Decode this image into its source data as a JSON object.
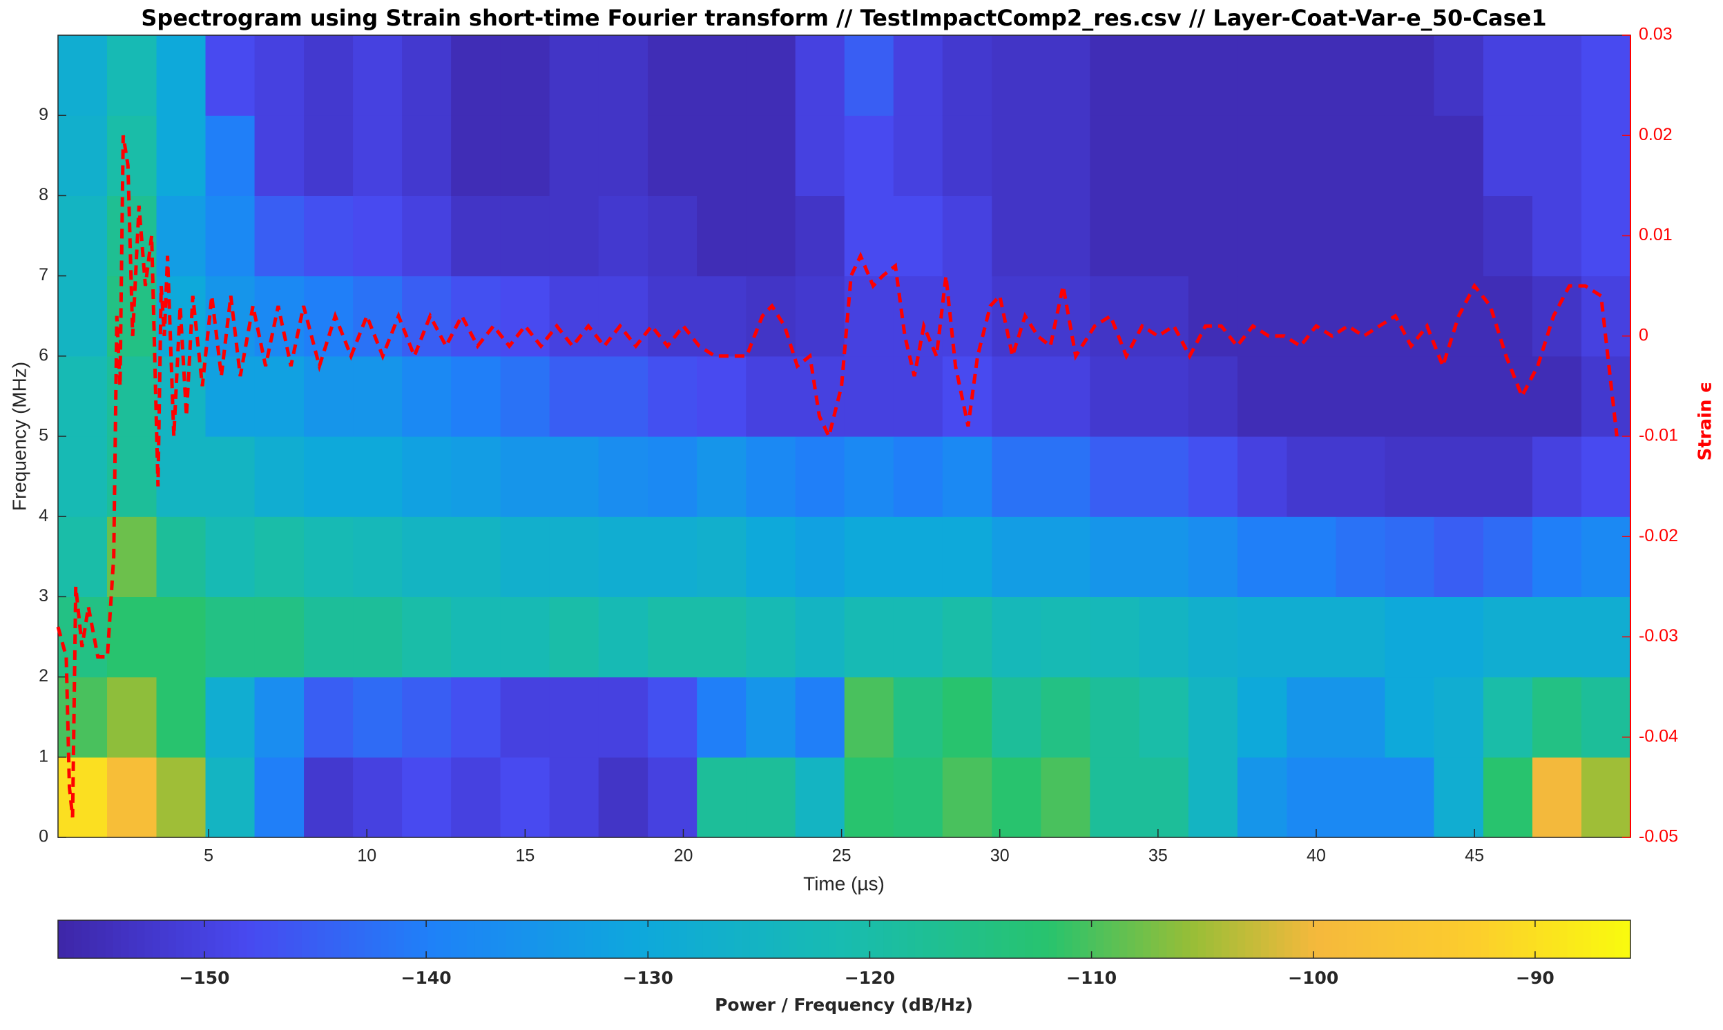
{
  "chart_data": {
    "type": "spectrogram",
    "title": "Spectrogram using Strain short-time Fourier transform //  TestImpactComp2_res.csv  // Layer-Coat-Var-e_50-Case1",
    "xlabel": "Time (µs)",
    "ylabel": "Frequency (MHz)",
    "y2label": "Strain ϵ",
    "colorbar_label": "Power / Frequency (dB/Hz)",
    "colormap": "parula",
    "xlim": [
      0.24,
      49.93
    ],
    "ylim": [
      0,
      10
    ],
    "y2lim": [
      -0.05,
      0.03
    ],
    "clim": [
      -156.6,
      -85.7
    ],
    "xticks": [
      5,
      10,
      15,
      20,
      25,
      30,
      35,
      40,
      45
    ],
    "yticks": [
      0,
      1,
      2,
      3,
      4,
      5,
      6,
      7,
      8,
      9
    ],
    "y2ticks": [
      -0.05,
      -0.04,
      -0.03,
      -0.02,
      -0.01,
      0,
      0.01,
      0.02,
      0.03
    ],
    "cticks": [
      {
        "value": -150,
        "label": "−150"
      },
      {
        "value": -140,
        "label": "−140"
      },
      {
        "value": -130,
        "label": "−130"
      },
      {
        "value": -120,
        "label": "−120"
      },
      {
        "value": -110,
        "label": "−110"
      },
      {
        "value": -100,
        "label": "−100"
      },
      {
        "value": -90,
        "label": "−90"
      }
    ],
    "time_bins": [
      0.24,
      1.79,
      3.35,
      4.9,
      6.45,
      8.01,
      9.56,
      11.11,
      12.66,
      14.22,
      15.77,
      17.32,
      18.88,
      20.43,
      21.98,
      23.54,
      25.09,
      26.64,
      28.19,
      29.75,
      31.3,
      32.85,
      34.41,
      35.96,
      37.51,
      39.07,
      40.62,
      42.17,
      43.72,
      45.28,
      46.83,
      48.38,
      49.93
    ],
    "freq_bins": [
      0,
      1,
      2,
      3,
      4,
      5,
      6,
      7,
      8,
      9,
      10
    ],
    "z": [
      [
        -90,
        -110,
        -115,
        -120,
        -122,
        -122,
        -125,
        -125,
        -127,
        -128
      ],
      [
        -98,
        -106,
        -112,
        -108,
        -118,
        -118,
        -115,
        -117,
        -120,
        -122
      ],
      [
        -105,
        -112,
        -112,
        -118,
        -125,
        -125,
        -130,
        -133,
        -130,
        -130
      ],
      [
        -125,
        -128,
        -115,
        -122,
        -125,
        -132,
        -135,
        -138,
        -140,
        -148
      ],
      [
        -140,
        -137,
        -115,
        -120,
        -128,
        -132,
        -138,
        -145,
        -150,
        -150
      ],
      [
        -152,
        -145,
        -118,
        -122,
        -130,
        -135,
        -140,
        -147,
        -152,
        -152
      ],
      [
        -150,
        -143,
        -118,
        -123,
        -130,
        -135,
        -142,
        -148,
        -150,
        -150
      ],
      [
        -148,
        -145,
        -120,
        -125,
        -132,
        -138,
        -145,
        -150,
        -152,
        -152
      ],
      [
        -150,
        -147,
        -122,
        -125,
        -133,
        -140,
        -147,
        -153,
        -155,
        -155
      ],
      [
        -148,
        -150,
        -122,
        -127,
        -135,
        -142,
        -148,
        -153,
        -155,
        -155
      ],
      [
        -150,
        -150,
        -120,
        -127,
        -135,
        -145,
        -150,
        -153,
        -153,
        -153
      ],
      [
        -153,
        -150,
        -122,
        -128,
        -137,
        -145,
        -150,
        -152,
        -153,
        -153
      ],
      [
        -150,
        -147,
        -120,
        -128,
        -138,
        -147,
        -152,
        -153,
        -155,
        -155
      ],
      [
        -118,
        -140,
        -120,
        -127,
        -135,
        -148,
        -152,
        -155,
        -155,
        -155
      ],
      [
        -118,
        -135,
        -122,
        -130,
        -138,
        -150,
        -153,
        -155,
        -155,
        -155
      ],
      [
        -125,
        -140,
        -125,
        -132,
        -140,
        -150,
        -152,
        -153,
        -150,
        -150
      ],
      [
        -112,
        -110,
        -122,
        -130,
        -138,
        -150,
        -150,
        -148,
        -148,
        -145
      ],
      [
        -113,
        -115,
        -122,
        -130,
        -140,
        -150,
        -150,
        -148,
        -150,
        -150
      ],
      [
        -110,
        -112,
        -120,
        -130,
        -138,
        -148,
        -150,
        -150,
        -152,
        -152
      ],
      [
        -112,
        -118,
        -123,
        -133,
        -142,
        -150,
        -152,
        -153,
        -153,
        -153
      ],
      [
        -110,
        -115,
        -122,
        -133,
        -142,
        -150,
        -152,
        -153,
        -153,
        -153
      ],
      [
        -118,
        -118,
        -123,
        -135,
        -145,
        -152,
        -153,
        -155,
        -155,
        -155
      ],
      [
        -118,
        -120,
        -125,
        -135,
        -145,
        -152,
        -153,
        -155,
        -155,
        -155
      ],
      [
        -125,
        -125,
        -127,
        -137,
        -147,
        -153,
        -155,
        -155,
        -155,
        -155
      ],
      [
        -135,
        -130,
        -128,
        -140,
        -150,
        -155,
        -155,
        -155,
        -155,
        -155
      ],
      [
        -138,
        -135,
        -128,
        -140,
        -152,
        -155,
        -155,
        -155,
        -155,
        -155
      ],
      [
        -138,
        -135,
        -128,
        -142,
        -152,
        -155,
        -155,
        -155,
        -155,
        -155
      ],
      [
        -138,
        -130,
        -130,
        -143,
        -153,
        -155,
        -155,
        -155,
        -155,
        -155
      ],
      [
        -128,
        -128,
        -130,
        -145,
        -153,
        -155,
        -155,
        -155,
        -155,
        -153
      ],
      [
        -112,
        -120,
        -128,
        -143,
        -153,
        -155,
        -155,
        -153,
        -150,
        -150
      ],
      [
        -100,
        -115,
        -128,
        -140,
        -150,
        -155,
        -153,
        -150,
        -150,
        -150
      ],
      [
        -105,
        -118,
        -128,
        -138,
        -148,
        -152,
        -150,
        -148,
        -148,
        -148
      ]
    ],
    "series": [
      {
        "name": "Strain ϵ",
        "color": "#ff0000",
        "axis": "y2",
        "x": [
          0.24,
          0.5,
          0.6,
          0.7,
          0.8,
          1.0,
          1.2,
          1.5,
          1.8,
          2.0,
          2.1,
          2.2,
          2.3,
          2.45,
          2.6,
          2.8,
          3.0,
          3.2,
          3.4,
          3.5,
          3.6,
          3.7,
          3.9,
          4.1,
          4.3,
          4.5,
          4.8,
          5.1,
          5.4,
          5.7,
          6.0,
          6.4,
          6.8,
          7.2,
          7.6,
          8.0,
          8.5,
          9,
          9.5,
          10,
          10.5,
          11,
          11.5,
          12,
          12.5,
          13,
          13.5,
          14,
          14.5,
          15,
          15.5,
          16,
          16.5,
          17,
          17.5,
          18,
          18.5,
          19,
          19.5,
          20,
          20.5,
          21,
          21.5,
          22,
          22.5,
          22.8,
          23.2,
          23.6,
          24.0,
          24.3,
          24.6,
          25,
          25.3,
          25.6,
          26.0,
          26.3,
          26.7,
          27.0,
          27.3,
          27.6,
          28.0,
          28.3,
          28.6,
          29.0,
          29.3,
          29.7,
          30.0,
          30.4,
          30.8,
          31.2,
          31.6,
          32.0,
          32.4,
          33.0,
          33.5,
          34.0,
          34.5,
          35.0,
          35.5,
          36.0,
          36.5,
          37.0,
          37.5,
          38,
          38.5,
          39,
          39.5,
          40,
          40.5,
          41,
          41.5,
          42,
          42.5,
          43,
          43.5,
          44,
          44.5,
          45,
          45.5,
          46,
          46.5,
          47,
          47.5,
          48,
          48.5,
          49,
          49.5
        ],
        "values": [
          -0.029,
          -0.032,
          -0.045,
          -0.048,
          -0.025,
          -0.031,
          -0.027,
          -0.032,
          -0.032,
          -0.022,
          0.002,
          -0.005,
          0.02,
          0.017,
          0.0,
          0.013,
          0.005,
          0.01,
          -0.015,
          0.005,
          0.0,
          0.008,
          -0.01,
          0.003,
          -0.008,
          0.004,
          -0.005,
          0.004,
          -0.004,
          0.004,
          -0.004,
          0.003,
          -0.003,
          0.003,
          -0.003,
          0.003,
          -0.003,
          0.002,
          -0.002,
          0.002,
          -0.002,
          0.002,
          -0.002,
          0.002,
          -0.001,
          0.002,
          -0.001,
          0.001,
          -0.001,
          0.001,
          -0.001,
          0.001,
          -0.001,
          0.001,
          -0.001,
          0.001,
          -0.001,
          0.001,
          -0.001,
          0.001,
          -0.001,
          -0.002,
          -0.002,
          -0.002,
          0.002,
          0.003,
          0.001,
          -0.003,
          -0.002,
          -0.008,
          -0.01,
          -0.005,
          0.006,
          0.008,
          0.005,
          0.006,
          0.007,
          0.0,
          -0.004,
          0.001,
          -0.002,
          0.006,
          -0.003,
          -0.009,
          -0.002,
          0.003,
          0.004,
          -0.002,
          0.002,
          0.0,
          -0.001,
          0.005,
          -0.002,
          0.001,
          0.002,
          -0.002,
          0.001,
          0.0,
          0.001,
          -0.002,
          0.001,
          0.001,
          -0.001,
          0.001,
          0.0,
          0.0,
          -0.001,
          0.001,
          0.0,
          0.001,
          0.0,
          0.001,
          0.002,
          -0.001,
          0.001,
          -0.003,
          0.002,
          0.005,
          0.003,
          -0.002,
          -0.006,
          -0.003,
          0.002,
          0.005,
          0.005,
          0.004,
          -0.01
        ]
      }
    ]
  }
}
